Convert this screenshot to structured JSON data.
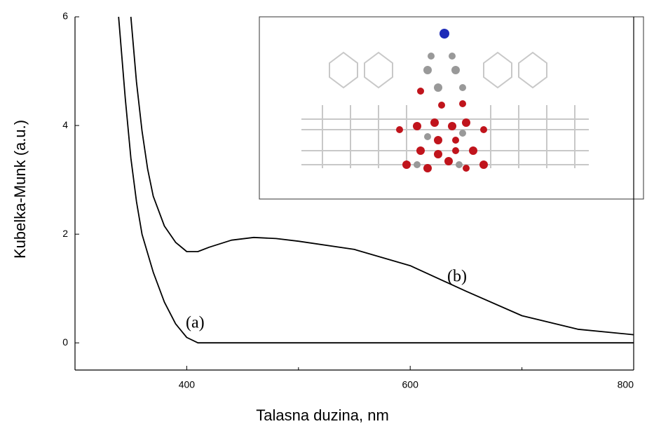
{
  "chart_data": {
    "type": "line",
    "xlabel": "Talasna duzina, nm",
    "ylabel": "Kubelka-Munk (a.u.)",
    "xlim": [
      300,
      800
    ],
    "ylim": [
      -0.5,
      6
    ],
    "xticks": [
      400,
      600,
      800
    ],
    "xminorticks": [
      300,
      500,
      700
    ],
    "yticks": [
      0,
      2,
      4,
      6
    ],
    "series": [
      {
        "name": "(a)",
        "color": "#000000",
        "x": [
          339,
          345,
          350,
          355,
          360,
          370,
          380,
          390,
          400,
          410,
          420,
          500,
          600,
          700,
          800
        ],
        "values": [
          6,
          4.5,
          3.4,
          2.6,
          2.0,
          1.3,
          0.75,
          0.35,
          0.1,
          0.0,
          0,
          0,
          0,
          0,
          0
        ]
      },
      {
        "name": "(b)",
        "color": "#000000",
        "x": [
          350,
          355,
          360,
          365,
          370,
          380,
          390,
          400,
          410,
          420,
          440,
          460,
          480,
          500,
          550,
          600,
          650,
          700,
          750,
          800
        ],
        "values": [
          6,
          4.8,
          3.9,
          3.2,
          2.7,
          2.15,
          1.85,
          1.68,
          1.68,
          1.76,
          1.89,
          1.94,
          1.92,
          1.87,
          1.72,
          1.42,
          0.95,
          0.5,
          0.25,
          0.15
        ]
      }
    ]
  }
}
